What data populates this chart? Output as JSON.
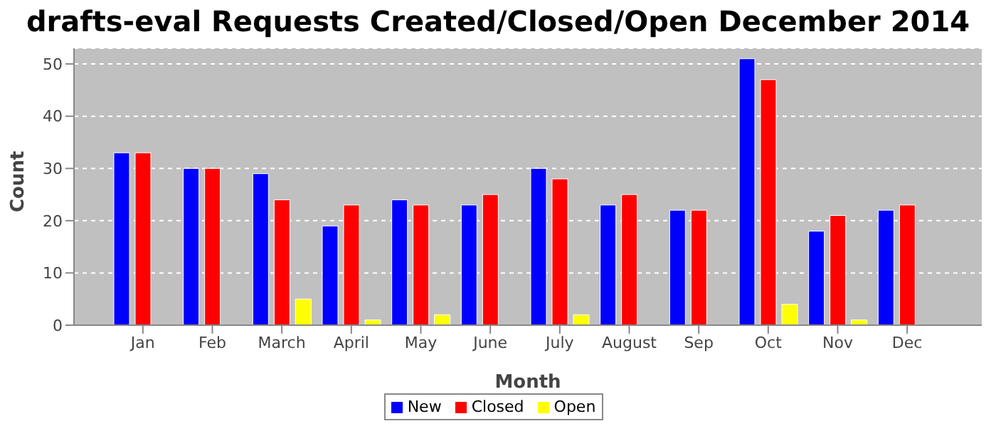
{
  "chart_data": {
    "type": "bar",
    "title": "drafts-eval Requests Created/Closed/Open December 2014",
    "xlabel": "Month",
    "ylabel": "Count",
    "categories": [
      "Jan",
      "Feb",
      "March",
      "April",
      "May",
      "June",
      "July",
      "August",
      "Sep",
      "Oct",
      "Nov",
      "Dec"
    ],
    "series": [
      {
        "name": "New",
        "color": "#0000ff",
        "values": [
          33,
          30,
          29,
          19,
          24,
          23,
          30,
          23,
          22,
          51,
          18,
          22
        ]
      },
      {
        "name": "Closed",
        "color": "#ff0000",
        "values": [
          33,
          30,
          24,
          23,
          23,
          25,
          28,
          25,
          22,
          47,
          21,
          23
        ]
      },
      {
        "name": "Open",
        "color": "#ffff00",
        "values": [
          0,
          0,
          5,
          1,
          2,
          0,
          2,
          0,
          0,
          4,
          1,
          0
        ]
      }
    ],
    "ylim": [
      0,
      53
    ],
    "yticks": [
      0,
      10,
      20,
      30,
      40,
      50
    ],
    "grid": "y",
    "legend": "bottom"
  }
}
